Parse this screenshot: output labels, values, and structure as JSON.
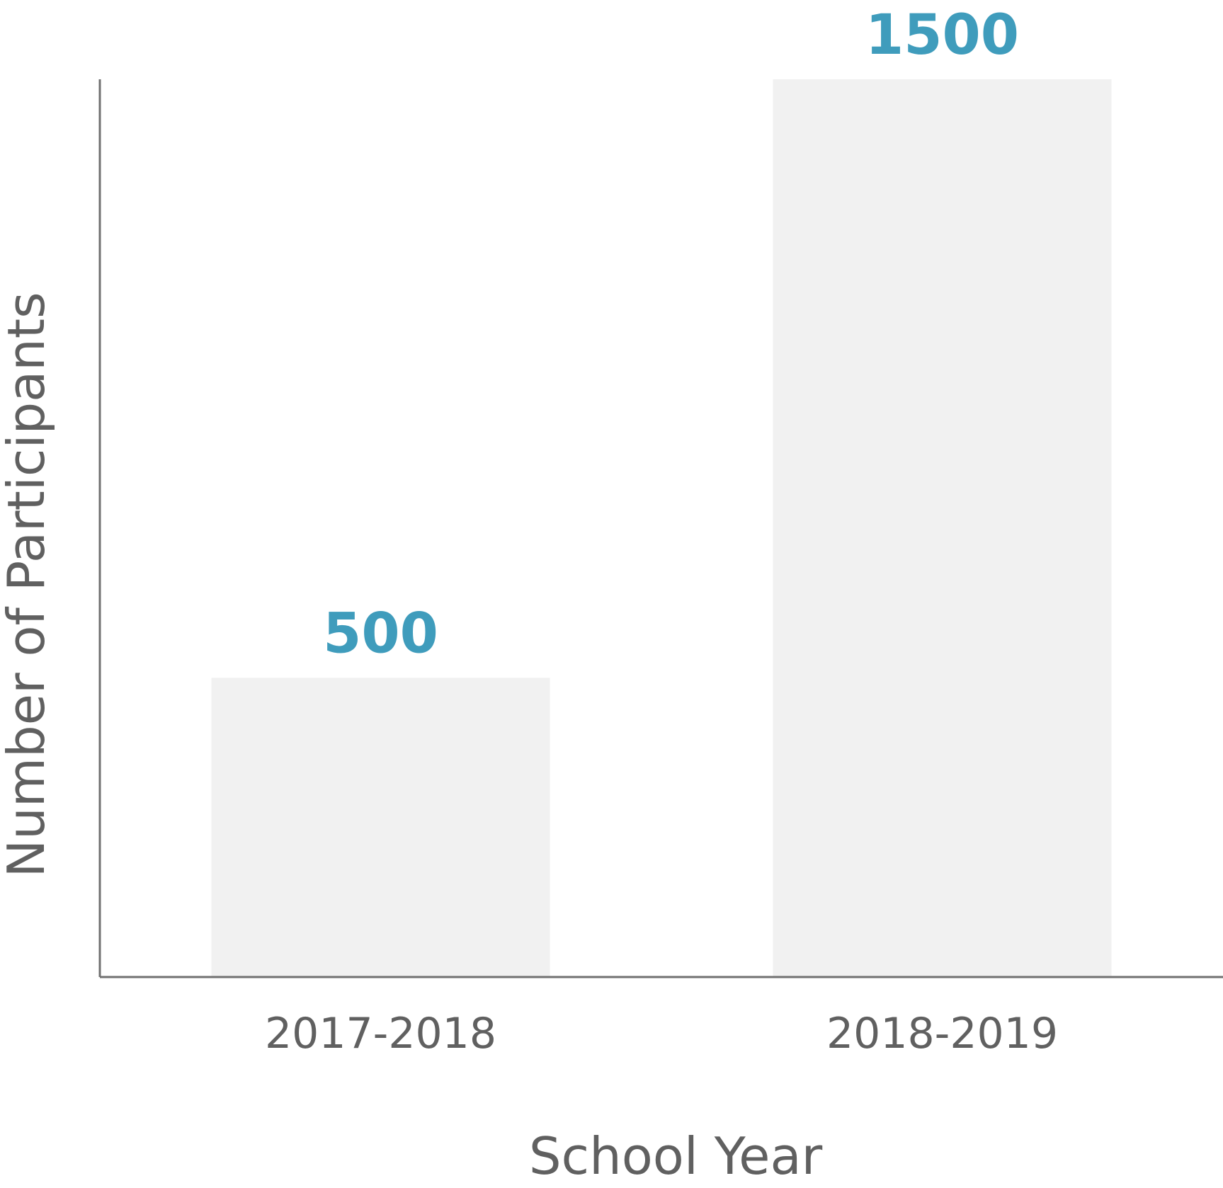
{
  "chart_data": {
    "type": "bar",
    "categories": [
      "2017-2018",
      "2018-2019"
    ],
    "values": [
      500,
      1500
    ],
    "data_labels": [
      "500",
      "1500"
    ],
    "title": "",
    "xlabel": "School Year",
    "ylabel": "Number of Participants",
    "ylim": [
      0,
      1500
    ],
    "grid": false,
    "legend": "none",
    "colors": {
      "bar": "#f1f1f1",
      "value_label": "#3f9cbc",
      "axis": "#707070",
      "text": "#606060"
    }
  }
}
